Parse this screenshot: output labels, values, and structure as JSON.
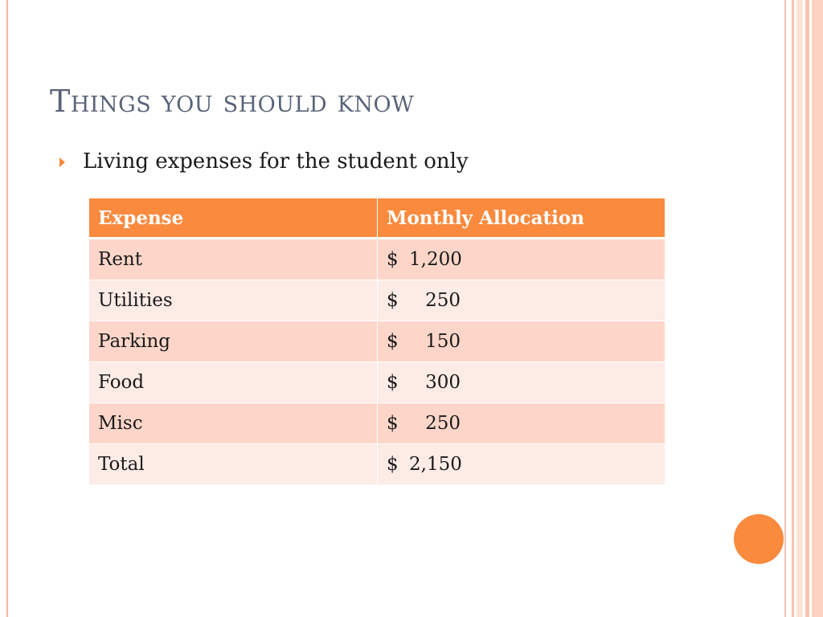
{
  "slide": {
    "title": "Things you should know",
    "bullet": "Living expenses for the student only"
  },
  "table": {
    "headers": [
      "Expense",
      "Monthly Allocation"
    ],
    "rows": [
      {
        "expense": "Rent",
        "currency": "$",
        "amount": "1,200"
      },
      {
        "expense": "Utilities",
        "currency": "$",
        "amount": "250"
      },
      {
        "expense": "Parking",
        "currency": "$",
        "amount": "150"
      },
      {
        "expense": "Food",
        "currency": "$",
        "amount": "300"
      },
      {
        "expense": "Misc",
        "currency": "$",
        "amount": "250"
      },
      {
        "expense": "Total",
        "currency": "$",
        "amount": "2,150"
      }
    ]
  },
  "colors": {
    "accent": "#f98a3e",
    "row_odd": "#fdd6c9",
    "row_even": "#fdebe6",
    "title_text": "#5a6478"
  }
}
